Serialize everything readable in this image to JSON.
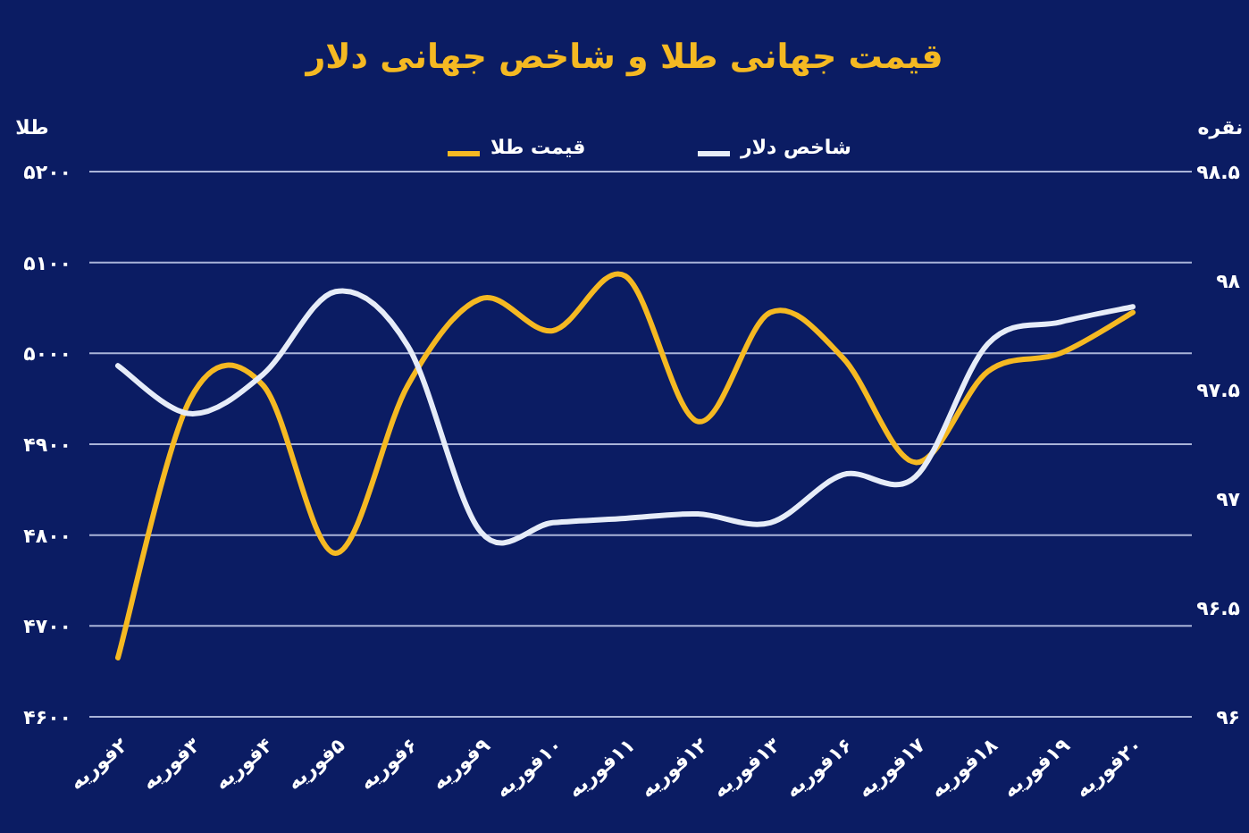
{
  "chart_data": {
    "type": "line",
    "title": "قیمت جهانی طلا و شاخص جهانی دلار",
    "ylabel": "طلا",
    "y2label": "نقره",
    "legend": "top",
    "grid": "y",
    "categories": [
      "۲فوریه",
      "۳فوریه",
      "۴فوریه",
      "۵فوریه",
      "۶فوریه",
      "۹فوریه",
      "۱۰فوریه",
      "۱۱فوریه",
      "۱۲فوریه",
      "۱۳فوریه",
      "۱۶فوریه",
      "۱۷فوریه",
      "۱۸فوریه",
      "۱۹فوریه",
      "۲۰فوریه"
    ],
    "series": [
      {
        "name": "قیمت طلا",
        "color": "#f5b922",
        "values": [
          4665,
          4950,
          4965,
          4780,
          4965,
          5060,
          5025,
          5085,
          4925,
          5045,
          4995,
          4880,
          4980,
          5000,
          5045
        ]
      },
      {
        "name": "شاخص دلار",
        "color": "#e6ecf8",
        "axis": "y2",
        "values": [
          97.61,
          97.39,
          97.57,
          97.95,
          97.7,
          96.85,
          96.89,
          96.91,
          96.93,
          96.89,
          97.11,
          97.1,
          97.71,
          97.81,
          97.88
        ]
      }
    ],
    "ylim": [
      4600,
      5200
    ],
    "yticks": [
      {
        "value": 4600,
        "label": "۴۶۰۰"
      },
      {
        "value": 4700,
        "label": "۴۷۰۰"
      },
      {
        "value": 4800,
        "label": "۴۸۰۰"
      },
      {
        "value": 4900,
        "label": "۴۹۰۰"
      },
      {
        "value": 5000,
        "label": "۵۰۰۰"
      },
      {
        "value": 5100,
        "label": "۵۱۰۰"
      },
      {
        "value": 5200,
        "label": "۵۲۰۰"
      }
    ],
    "y2lim": [
      96,
      98.5
    ],
    "y2ticks": [
      {
        "value": 96,
        "label": "۹۶"
      },
      {
        "value": 96.5,
        "label": "۹۶.۵"
      },
      {
        "value": 97,
        "label": "۹۷"
      },
      {
        "value": 97.5,
        "label": "۹۷.۵"
      },
      {
        "value": 98,
        "label": "۹۸"
      },
      {
        "value": 98.5,
        "label": "۹۸.۵"
      }
    ]
  }
}
